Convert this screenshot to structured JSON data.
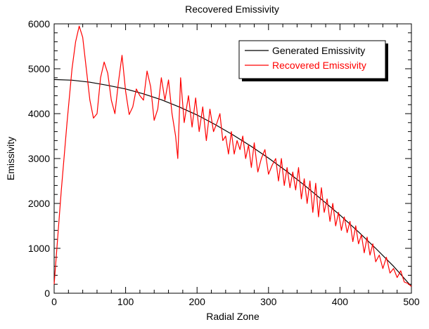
{
  "chart_data": {
    "type": "line",
    "title": "Recovered Emissivity",
    "xlabel": "Radial Zone",
    "ylabel": "Emissivity",
    "xlim": [
      0,
      500
    ],
    "ylim": [
      0,
      6000
    ],
    "x_ticks": [
      "0",
      "100",
      "200",
      "300",
      "400",
      "500"
    ],
    "y_ticks": [
      "0",
      "1000",
      "2000",
      "3000",
      "4000",
      "5000",
      "6000"
    ],
    "legend_position": "top-right",
    "series": [
      {
        "name": "Generated Emissivity",
        "color": "#000000",
        "points": [
          [
            0,
            4760
          ],
          [
            25,
            4745
          ],
          [
            50,
            4700
          ],
          [
            75,
            4630
          ],
          [
            100,
            4550
          ],
          [
            125,
            4440
          ],
          [
            150,
            4310
          ],
          [
            175,
            4150
          ],
          [
            200,
            3970
          ],
          [
            225,
            3760
          ],
          [
            250,
            3530
          ],
          [
            275,
            3280
          ],
          [
            300,
            3010
          ],
          [
            325,
            2720
          ],
          [
            350,
            2410
          ],
          [
            375,
            2080
          ],
          [
            400,
            1740
          ],
          [
            425,
            1380
          ],
          [
            450,
            1000
          ],
          [
            475,
            600
          ],
          [
            500,
            150
          ]
        ]
      },
      {
        "name": "Recovered Emissivity",
        "color": "#ff0000",
        "points": [
          [
            0,
            200
          ],
          [
            10,
            2300
          ],
          [
            18,
            3800
          ],
          [
            25,
            5000
          ],
          [
            30,
            5600
          ],
          [
            35,
            5950
          ],
          [
            40,
            5700
          ],
          [
            45,
            5000
          ],
          [
            50,
            4300
          ],
          [
            55,
            3900
          ],
          [
            60,
            4000
          ],
          [
            65,
            4800
          ],
          [
            70,
            5150
          ],
          [
            75,
            4900
          ],
          [
            80,
            4300
          ],
          [
            85,
            4000
          ],
          [
            90,
            4700
          ],
          [
            95,
            5300
          ],
          [
            100,
            4500
          ],
          [
            105,
            3980
          ],
          [
            110,
            4150
          ],
          [
            115,
            4550
          ],
          [
            120,
            4400
          ],
          [
            125,
            4300
          ],
          [
            130,
            4950
          ],
          [
            135,
            4600
          ],
          [
            140,
            3850
          ],
          [
            145,
            4100
          ],
          [
            150,
            4800
          ],
          [
            155,
            4300
          ],
          [
            160,
            4750
          ],
          [
            165,
            4000
          ],
          [
            170,
            3500
          ],
          [
            173,
            3000
          ],
          [
            177,
            4800
          ],
          [
            182,
            3800
          ],
          [
            188,
            4400
          ],
          [
            193,
            3700
          ],
          [
            198,
            4350
          ],
          [
            203,
            3600
          ],
          [
            208,
            4150
          ],
          [
            213,
            3400
          ],
          [
            218,
            4100
          ],
          [
            223,
            3600
          ],
          [
            228,
            3800
          ],
          [
            232,
            4000
          ],
          [
            236,
            3400
          ],
          [
            240,
            3500
          ],
          [
            244,
            3100
          ],
          [
            248,
            3600
          ],
          [
            252,
            3100
          ],
          [
            256,
            3400
          ],
          [
            260,
            3200
          ],
          [
            264,
            3500
          ],
          [
            268,
            3000
          ],
          [
            272,
            3300
          ],
          [
            276,
            2800
          ],
          [
            280,
            3350
          ],
          [
            285,
            2700
          ],
          [
            290,
            3000
          ],
          [
            295,
            3200
          ],
          [
            300,
            2650
          ],
          [
            305,
            2850
          ],
          [
            310,
            3000
          ],
          [
            314,
            2500
          ],
          [
            318,
            3000
          ],
          [
            322,
            2400
          ],
          [
            326,
            2800
          ],
          [
            330,
            2350
          ],
          [
            334,
            2700
          ],
          [
            338,
            2300
          ],
          [
            342,
            2800
          ],
          [
            346,
            2100
          ],
          [
            350,
            2550
          ],
          [
            354,
            2000
          ],
          [
            358,
            2500
          ],
          [
            362,
            1800
          ],
          [
            366,
            2450
          ],
          [
            370,
            1700
          ],
          [
            374,
            2350
          ],
          [
            378,
            1800
          ],
          [
            382,
            2100
          ],
          [
            386,
            1600
          ],
          [
            390,
            2000
          ],
          [
            394,
            1500
          ],
          [
            398,
            1800
          ],
          [
            402,
            1400
          ],
          [
            406,
            1700
          ],
          [
            410,
            1350
          ],
          [
            414,
            1600
          ],
          [
            418,
            1150
          ],
          [
            422,
            1500
          ],
          [
            426,
            1100
          ],
          [
            430,
            1300
          ],
          [
            434,
            900
          ],
          [
            438,
            1250
          ],
          [
            442,
            850
          ],
          [
            446,
            1100
          ],
          [
            450,
            700
          ],
          [
            455,
            850
          ],
          [
            460,
            550
          ],
          [
            465,
            800
          ],
          [
            470,
            450
          ],
          [
            475,
            550
          ],
          [
            480,
            350
          ],
          [
            485,
            500
          ],
          [
            490,
            250
          ],
          [
            495,
            220
          ],
          [
            500,
            150
          ]
        ]
      }
    ]
  }
}
